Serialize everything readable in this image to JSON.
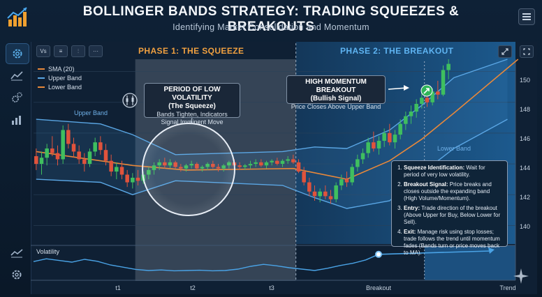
{
  "header": {
    "title": "BOLLINGER BANDS STRATEGY: TRADING SQUEEZES & BREAKOUTS",
    "subtitle": "Identifying Market Consolidation and Momentum"
  },
  "colors": {
    "sma": "#e8883a",
    "upper": "#5aa6e4",
    "lower": "#5aa6e4",
    "bull": "#3fbf5f",
    "bear": "#e0533c",
    "accent": "#2f8fd8"
  },
  "sidebar": {
    "items": [
      "settings-icon",
      "line-chart-icon",
      "gears-icon",
      "bar-chart-icon"
    ]
  },
  "toolbar": {
    "buttons": [
      "Vs",
      "≡",
      "⫶",
      "···"
    ]
  },
  "phases": {
    "phase1": "PHASE 1: THE SQUEEZE",
    "phase2": "PHASE 2: THE BREAKOUT"
  },
  "legend": {
    "sma": "SMA (20)",
    "upper": "Upper Band",
    "lower": "Lower Band"
  },
  "bands": {
    "upper_label": "Upper Band",
    "lower_label": "Lower Band"
  },
  "callouts": {
    "squeeze": {
      "title": "PERIOD OF LOW VOLATILITY",
      "title2": "(The Squeeze)",
      "line1": "Bands Tighten, Indicators",
      "line2": "Signal Imminent Move"
    },
    "breakout": {
      "title": "HIGH MOMENTUM BREAKOUT",
      "title2": "(Bullish Signal)",
      "line1": "Price Closes Above Upper Band"
    }
  },
  "info": {
    "steps": [
      {
        "label": "Squeeze Identification:",
        "text": " Wait for period of very low volatility."
      },
      {
        "label": "Breakout Signal:",
        "text": " Price breaks and closes outside the expanding band (High Volume/Momentum)."
      },
      {
        "label": "Entry:",
        "text": " Trade direction of the breakout (Above Upper for Buy, Below Lower for Sell)."
      },
      {
        "label": "Exit:",
        "text": " Manage risk using stop losses; trade follows the trend until momentum fades (Bands turn or price moves back to MA)."
      }
    ]
  },
  "chart_data": {
    "type": "candlestick",
    "y_ticks": [
      "150",
      "148",
      "146",
      "144",
      "142",
      "140"
    ],
    "x_ticks": [
      "t1",
      "t2",
      "t3",
      "Breakout",
      "Trend"
    ],
    "volatility_label": "Volatility",
    "ylim": [
      138.7,
      150.8
    ],
    "candles": [
      [
        144.5,
        145.0,
        143.6,
        144.0
      ],
      [
        144.0,
        144.8,
        143.3,
        144.4
      ],
      [
        144.4,
        145.3,
        143.9,
        145.0
      ],
      [
        145.0,
        145.8,
        144.5,
        144.7
      ],
      [
        144.7,
        145.2,
        143.9,
        144.3
      ],
      [
        144.3,
        146.5,
        144.0,
        146.2
      ],
      [
        146.2,
        146.6,
        145.0,
        145.3
      ],
      [
        145.3,
        145.7,
        144.4,
        144.8
      ],
      [
        144.8,
        145.2,
        144.0,
        144.3
      ],
      [
        144.3,
        144.7,
        143.5,
        144.0
      ],
      [
        144.0,
        145.0,
        143.8,
        144.8
      ],
      [
        144.8,
        145.7,
        144.5,
        145.4
      ],
      [
        145.4,
        145.8,
        144.6,
        144.9
      ],
      [
        144.9,
        145.3,
        143.9,
        144.2
      ],
      [
        144.2,
        144.6,
        143.2,
        143.5
      ],
      [
        143.5,
        144.1,
        143.0,
        143.8
      ],
      [
        143.8,
        144.2,
        143.0,
        143.3
      ],
      [
        143.3,
        143.6,
        142.5,
        142.8
      ],
      [
        142.8,
        143.4,
        142.4,
        143.1
      ],
      [
        143.1,
        143.6,
        142.6,
        142.9
      ],
      [
        142.9,
        143.5,
        142.7,
        143.3
      ],
      [
        143.3,
        143.8,
        143.0,
        143.6
      ],
      [
        143.6,
        144.1,
        143.3,
        143.9
      ],
      [
        143.9,
        144.3,
        143.6,
        144.1
      ],
      [
        144.1,
        144.4,
        143.7,
        143.9
      ],
      [
        143.9,
        144.3,
        143.7,
        144.1
      ],
      [
        144.1,
        144.2,
        143.7,
        143.8
      ],
      [
        143.8,
        144.0,
        143.5,
        143.7
      ],
      [
        143.7,
        144.0,
        143.5,
        143.9
      ],
      [
        143.9,
        144.2,
        143.7,
        144.0
      ],
      [
        144.0,
        144.1,
        143.6,
        143.7
      ],
      [
        143.7,
        143.9,
        143.5,
        143.8
      ],
      [
        143.8,
        144.1,
        143.6,
        144.0
      ],
      [
        144.0,
        144.2,
        143.7,
        143.8
      ],
      [
        143.8,
        144.0,
        143.5,
        143.7
      ],
      [
        143.7,
        144.0,
        143.5,
        143.9
      ],
      [
        143.9,
        144.2,
        143.7,
        144.1
      ],
      [
        144.1,
        144.3,
        143.8,
        143.9
      ],
      [
        143.9,
        144.1,
        143.6,
        143.8
      ],
      [
        143.8,
        144.0,
        143.6,
        143.9
      ],
      [
        143.9,
        144.2,
        143.7,
        144.0
      ],
      [
        144.0,
        144.3,
        143.8,
        144.1
      ],
      [
        144.1,
        144.3,
        143.8,
        143.9
      ],
      [
        143.9,
        144.2,
        143.7,
        144.1
      ],
      [
        144.1,
        144.3,
        143.9,
        144.2
      ],
      [
        144.2,
        144.4,
        143.9,
        144.0
      ],
      [
        144.0,
        144.3,
        143.8,
        144.2
      ],
      [
        144.2,
        144.5,
        144.0,
        144.3
      ],
      [
        144.3,
        144.6,
        144.0,
        144.1
      ],
      [
        144.1,
        144.3,
        143.4,
        143.5
      ],
      [
        143.5,
        143.8,
        142.6,
        142.8
      ],
      [
        142.8,
        143.1,
        141.9,
        142.2
      ],
      [
        142.2,
        142.6,
        141.6,
        141.9
      ],
      [
        141.9,
        142.4,
        141.5,
        142.2
      ],
      [
        142.2,
        142.6,
        141.7,
        141.9
      ],
      [
        141.9,
        142.3,
        141.4,
        141.7
      ],
      [
        141.7,
        142.8,
        141.5,
        142.6
      ],
      [
        142.6,
        143.3,
        142.3,
        143.0
      ],
      [
        143.0,
        143.5,
        142.5,
        142.8
      ],
      [
        142.8,
        144.0,
        142.6,
        143.8
      ],
      [
        143.8,
        144.6,
        143.5,
        144.3
      ],
      [
        144.3,
        145.0,
        144.0,
        144.7
      ],
      [
        144.7,
        145.7,
        144.4,
        145.4
      ],
      [
        145.4,
        146.1,
        144.8,
        145.0
      ],
      [
        145.0,
        145.8,
        144.6,
        145.5
      ],
      [
        145.5,
        146.3,
        145.1,
        146.0
      ],
      [
        146.0,
        146.6,
        145.2,
        145.4
      ],
      [
        145.4,
        146.2,
        145.0,
        145.9
      ],
      [
        145.9,
        146.9,
        145.6,
        146.6
      ],
      [
        146.6,
        147.4,
        146.2,
        147.1
      ],
      [
        147.1,
        147.8,
        146.6,
        147.4
      ],
      [
        147.4,
        148.2,
        147.0,
        147.9
      ],
      [
        147.9,
        148.7,
        147.6,
        148.3
      ],
      [
        148.3,
        148.8,
        147.7,
        148.0
      ],
      [
        148.0,
        148.9,
        147.8,
        148.7
      ],
      [
        148.7,
        149.4,
        148.2,
        148.5
      ],
      [
        148.5,
        150.4,
        148.4,
        150.1
      ],
      [
        150.1,
        150.8,
        149.5,
        150.5
      ]
    ],
    "sma": [
      [
        0,
        144.8
      ],
      [
        18,
        143.9
      ],
      [
        28,
        143.6
      ],
      [
        48,
        143.7
      ],
      [
        58,
        143.0
      ],
      [
        66,
        144.2
      ],
      [
        72,
        145.6
      ],
      [
        78,
        147.3
      ],
      [
        90,
        150.8
      ]
    ],
    "upper": [
      [
        0,
        146.9
      ],
      [
        12,
        146.6
      ],
      [
        18,
        145.9
      ],
      [
        26,
        144.6
      ],
      [
        46,
        144.8
      ],
      [
        52,
        145.1
      ],
      [
        58,
        145.0
      ],
      [
        66,
        146.2
      ],
      [
        72,
        147.8
      ],
      [
        78,
        149.6
      ],
      [
        88,
        150.8
      ]
    ],
    "lower": [
      [
        0,
        143.0
      ],
      [
        12,
        142.8
      ],
      [
        18,
        142.0
      ],
      [
        26,
        142.9
      ],
      [
        46,
        142.6
      ],
      [
        52,
        141.8
      ],
      [
        58,
        141.1
      ],
      [
        66,
        141.6
      ],
      [
        72,
        143.4
      ],
      [
        78,
        145.0
      ],
      [
        88,
        146.9
      ]
    ],
    "volatility": [
      0.62,
      0.72,
      0.66,
      0.6,
      0.7,
      0.63,
      0.5,
      0.42,
      0.34,
      0.3,
      0.32,
      0.29,
      0.3,
      0.31,
      0.29,
      0.3,
      0.35,
      0.45,
      0.52,
      0.47,
      0.4,
      0.35,
      0.3,
      0.38,
      0.48,
      0.56,
      0.68,
      0.88
    ],
    "phase_boundaries": {
      "squeeze_start": 18.5,
      "squeeze_end": 48.5,
      "breakout_start": 72.5
    },
    "series": [
      {
        "name": "SMA (20)"
      },
      {
        "name": "Upper Band"
      },
      {
        "name": "Lower Band"
      }
    ]
  }
}
